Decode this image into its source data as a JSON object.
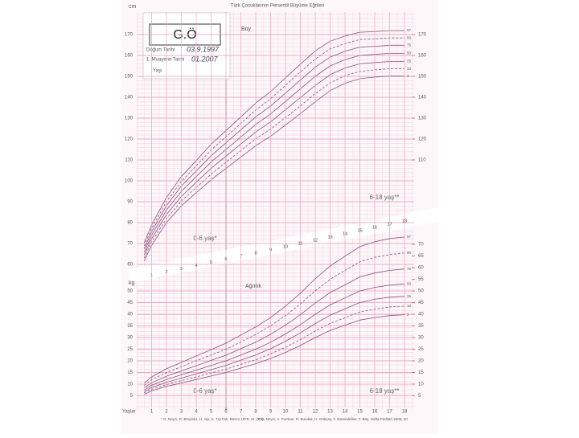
{
  "title": "Türk Çocuklarının Persentil Büyüme Eğrileri",
  "stamp": "G.Ö",
  "form": {
    "birth_label": "Doğum Tarihi",
    "birth_value": "03.9.1997",
    "exam_label": "1. Muayene Tarihi",
    "exam_value": "01.2007",
    "age_label": "Yaşı"
  },
  "footnotes": [
    "* O. Neyzi, R. Binyıldız, H. Alp, S. Tıp Fak. Mecm 1978; 41: (Ek)",
    "** O. Neyzi, A. Furman, R. Bundak, H. Gökçay, F. Darendeliler, F. Baş, Hafta Pediatri 2006; 20"
  ],
  "chart_data": [
    {
      "type": "line",
      "title": "Boy",
      "y_label": "cm",
      "annotations": [
        "0-6 yaş*",
        "6-18 yaş**"
      ],
      "x": [
        0.5,
        1,
        2,
        3,
        4,
        5,
        6,
        7,
        8,
        9,
        10,
        11,
        12,
        13,
        14,
        15,
        16,
        17,
        18
      ],
      "xlim": [
        0,
        18
      ],
      "xticks": [
        1,
        2,
        3,
        4,
        5,
        6,
        7,
        8,
        9,
        10,
        11,
        12,
        13,
        14,
        15,
        16,
        17,
        18
      ],
      "ylim": [
        60,
        180
      ],
      "yticks": [
        60,
        70,
        80,
        90,
        100,
        110,
        120,
        130,
        140,
        150,
        160,
        170
      ],
      "y2lim": [
        60,
        180
      ],
      "y2ticks": [
        110,
        120,
        130,
        140,
        150,
        160,
        170
      ],
      "series": [
        {
          "name": "97",
          "color": "#8b4f7e",
          "style": "solid",
          "values": [
            70.3,
            78.9,
            92,
            102,
            109.7,
            117.5,
            124,
            130.6,
            137.2,
            142.7,
            149.3,
            155.8,
            162.2,
            166.8,
            169.3,
            171.1,
            171.4,
            171.9,
            171.9
          ]
        },
        {
          "name": "90",
          "color": "#8b4f7e",
          "style": "dashed",
          "values": [
            68.9,
            77.3,
            90.1,
            99.7,
            107.2,
            114.8,
            121.1,
            127.5,
            133.9,
            139.3,
            145.7,
            152.1,
            158.3,
            163.1,
            165.7,
            167.6,
            167.9,
            168.4,
            168.4
          ]
        },
        {
          "name": "75",
          "color": "#8b4f7e",
          "style": "solid",
          "values": [
            67.5,
            75.7,
            88.1,
            97.5,
            104.7,
            112,
            118.2,
            124.4,
            130.6,
            135.8,
            142,
            148.2,
            154.4,
            159.2,
            162,
            164,
            164.4,
            164.9,
            164.9
          ]
        },
        {
          "name": "50",
          "color": "#8b4f7e",
          "style": "solid",
          "values": [
            66,
            74,
            86,
            95,
            102,
            109,
            115,
            121,
            127,
            132,
            138,
            144,
            150,
            155,
            158,
            160,
            160.5,
            161,
            161
          ]
        },
        {
          "name": "25",
          "color": "#8b4f7e",
          "style": "solid",
          "values": [
            64.5,
            72.3,
            83.9,
            92.5,
            99.3,
            106,
            111.8,
            117.6,
            123.4,
            128.2,
            134,
            139.8,
            145.6,
            150.8,
            154,
            156,
            156.6,
            157.1,
            157.1
          ]
        },
        {
          "name": "10",
          "color": "#8b4f7e",
          "style": "dashed",
          "values": [
            63.1,
            70.7,
            81.9,
            90.3,
            96.8,
            103.2,
            108.9,
            114.5,
            120.1,
            124.7,
            130.3,
            135.9,
            141.7,
            146.9,
            150.3,
            152.4,
            153.1,
            153.6,
            153.6
          ]
        },
        {
          "name": "3",
          "color": "#8b4f7e",
          "style": "solid",
          "values": [
            61.7,
            69.1,
            80,
            88,
            94.3,
            100.5,
            106,
            111.4,
            116.8,
            121.3,
            126.7,
            132.2,
            137.8,
            143.2,
            146.7,
            148.9,
            149.6,
            150.1,
            150.1
          ]
        }
      ]
    },
    {
      "type": "line",
      "title": "Ağırlık",
      "y_label": "kg",
      "x_label": "Yaşlar",
      "annotations": [
        "0-6 yaş*",
        "6-18 yaş**"
      ],
      "x": [
        0.5,
        1,
        2,
        3,
        4,
        5,
        6,
        7,
        8,
        9,
        10,
        11,
        12,
        13,
        14,
        15,
        16,
        17,
        18
      ],
      "xlim": [
        0,
        18
      ],
      "xticks": [
        1,
        2,
        3,
        4,
        5,
        6,
        7,
        8,
        9,
        10,
        11,
        12,
        13,
        14,
        15,
        16,
        17,
        18
      ],
      "ylim": [
        0,
        75
      ],
      "yticks": [
        5,
        10,
        15,
        20,
        25,
        30,
        35,
        40,
        45,
        50
      ],
      "y2lim": [
        0,
        75
      ],
      "y2ticks": [
        5,
        10,
        15,
        20,
        25,
        30,
        35,
        40,
        45,
        50,
        55,
        60,
        65,
        70
      ],
      "series": [
        {
          "name": "97",
          "color": "#8b4f7e",
          "style": "solid",
          "values": [
            10.4,
            13.1,
            16.6,
            19.3,
            22.1,
            24.8,
            27.6,
            31.1,
            34.5,
            38.6,
            43.5,
            49,
            55.2,
            60.7,
            64.9,
            69,
            71.1,
            72.5,
            73.1
          ]
        },
        {
          "name": "90",
          "color": "#8b4f7e",
          "style": "dashed",
          "values": [
            9.4,
            11.9,
            15,
            17.5,
            20,
            22.5,
            25,
            28.1,
            31.3,
            35,
            39.4,
            44.4,
            50,
            55,
            58.8,
            62.5,
            64.4,
            65.6,
            66.3
          ]
        },
        {
          "name": "75",
          "color": "#8b4f7e",
          "style": "solid",
          "values": [
            8.4,
            10.6,
            13.4,
            15.7,
            17.9,
            20.2,
            22.4,
            25.2,
            28,
            31.4,
            35.3,
            39.8,
            44.8,
            49.3,
            52.6,
            56,
            57.7,
            58.8,
            59.4
          ]
        },
        {
          "name": "50",
          "color": "#8b4f7e",
          "style": "solid",
          "values": [
            7.5,
            9.5,
            12,
            14,
            16,
            18,
            20,
            22.5,
            25,
            28,
            31.5,
            35.5,
            40,
            44,
            47,
            50,
            51.5,
            52.5,
            53
          ]
        },
        {
          "name": "25",
          "color": "#8b4f7e",
          "style": "solid",
          "values": [
            6.8,
            8.6,
            10.8,
            12.6,
            14.4,
            16.2,
            18,
            20.3,
            22.5,
            25.2,
            28.4,
            32,
            36,
            39.6,
            42.3,
            45,
            46.4,
            47.3,
            47.7
          ]
        },
        {
          "name": "10",
          "color": "#8b4f7e",
          "style": "dashed",
          "values": [
            6.2,
            7.8,
            9.8,
            11.5,
            13.1,
            14.8,
            16.4,
            18.5,
            20.5,
            23,
            25.8,
            29.1,
            32.8,
            36.1,
            38.5,
            41,
            42.2,
            43.1,
            43.5
          ]
        },
        {
          "name": "3",
          "color": "#8b4f7e",
          "style": "solid",
          "values": [
            5.6,
            7.1,
            9,
            10.5,
            12,
            13.5,
            15,
            16.9,
            18.8,
            21,
            23.6,
            26.6,
            30,
            33,
            35.3,
            37.5,
            38.6,
            39.4,
            39.8
          ]
        }
      ]
    }
  ]
}
